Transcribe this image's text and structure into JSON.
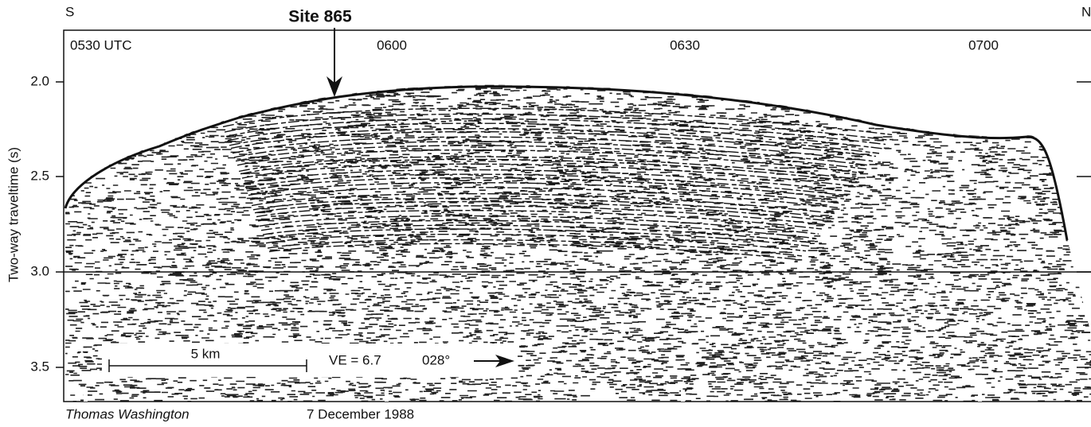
{
  "figure": {
    "direction_left": "S",
    "direction_right": "N",
    "site_label": "Site 865",
    "time_labels": [
      "0530 UTC",
      "0600",
      "0630",
      "0700"
    ],
    "y_axis_label": "Two-way traveltime (s)",
    "y_tick_labels": [
      "2.0",
      "2.5",
      "3.0",
      "3.5"
    ],
    "scale_label": "5 km",
    "ve_label": "VE = 6.7",
    "heading_label": "028°",
    "ship_label": "Thomas Washington",
    "date_label": "7 December 1988"
  }
}
